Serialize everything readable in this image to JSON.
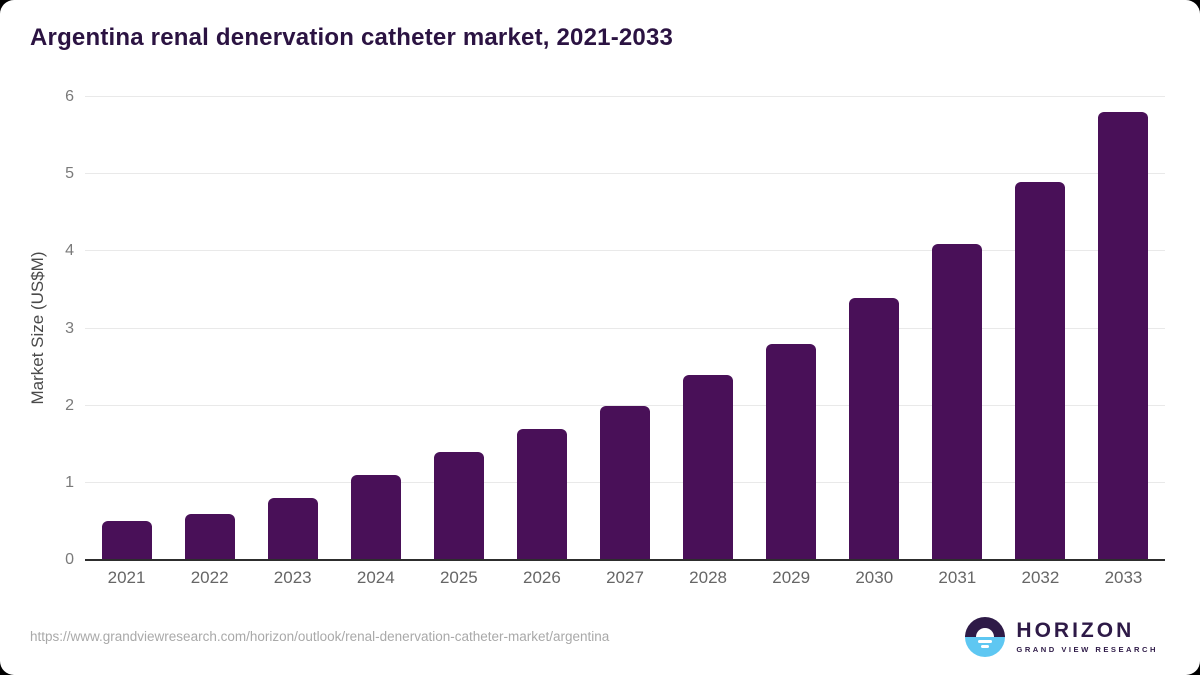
{
  "title": "Argentina renal denervation catheter market, 2021-2033",
  "chart_data": {
    "type": "bar",
    "categories": [
      "2021",
      "2022",
      "2023",
      "2024",
      "2025",
      "2026",
      "2027",
      "2028",
      "2029",
      "2030",
      "2031",
      "2032",
      "2033"
    ],
    "values": [
      0.5,
      0.6,
      0.8,
      1.1,
      1.4,
      1.7,
      2.0,
      2.4,
      2.8,
      3.4,
      4.1,
      4.9,
      5.8
    ],
    "title": "Argentina renal denervation catheter market, 2021-2033",
    "xlabel": "",
    "ylabel": "Market Size (US$M)",
    "ylim": [
      0,
      6
    ],
    "ytick_step": 1,
    "grid": true,
    "legend": "none",
    "bar_color": "#491058"
  },
  "footer": {
    "url": "https://www.grandviewresearch.com/horizon/outlook/renal-denervation-catheter-market/argentina",
    "logo": {
      "name": "HORIZON",
      "subtitle": "GRAND VIEW RESEARCH"
    }
  },
  "colors": {
    "bar": "#491058",
    "title_text": "#2b1342",
    "axis_label": "#666666",
    "gridline": "#e9e9e9",
    "logo_purple": "#2e1a47",
    "logo_blue": "#5ec7f2"
  }
}
